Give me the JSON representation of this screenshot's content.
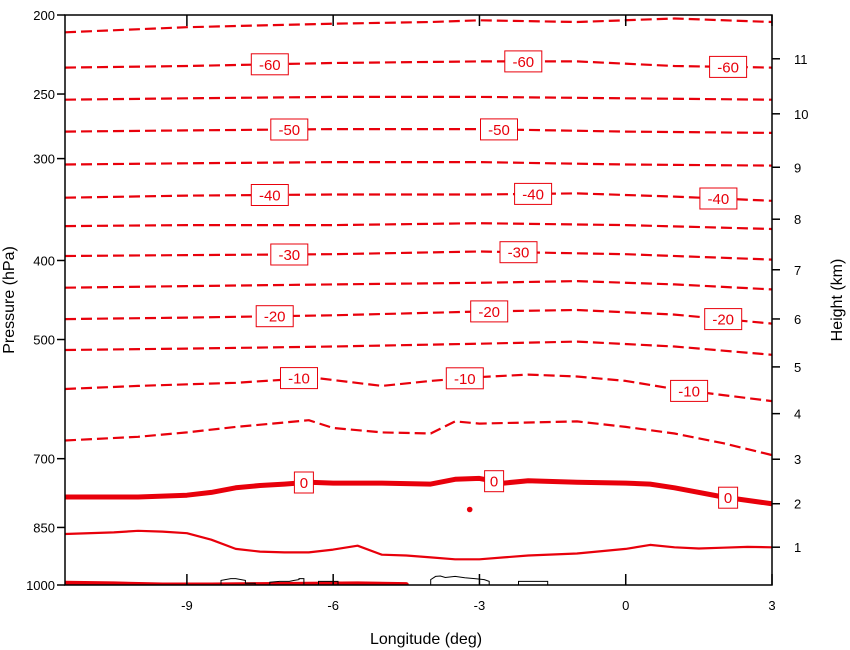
{
  "chart_data": {
    "type": "line",
    "xlabel": "Longitude (deg)",
    "ylabel": "Pressure (hPa)",
    "y2label": "Height (km)",
    "xlim": [
      -11.5,
      3
    ],
    "x_ticks": [
      -9,
      -6,
      -3,
      0,
      3
    ],
    "y_scale": "log",
    "ylim": [
      200,
      1000
    ],
    "y_ticks": [
      200,
      250,
      300,
      400,
      500,
      700,
      850,
      1000
    ],
    "y_tick_labels": [
      "200",
      "250",
      "300",
      "400",
      "500",
      "700",
      "850",
      "1000"
    ],
    "y2_ticks": [
      1,
      2,
      3,
      4,
      5,
      6,
      7,
      8,
      9,
      10,
      11
    ],
    "y2_tick_labels": [
      "1",
      "2",
      "3",
      "4",
      "5",
      "6",
      "7",
      "8",
      "9",
      "10",
      "11"
    ],
    "grid": false,
    "contour_color": "#e8000b",
    "terrain_color": "#000000",
    "contour_levels": [
      {
        "level": -65,
        "style": "dashed",
        "x": [
          -11.5,
          -9,
          -6,
          -4,
          -3,
          -1,
          1,
          3
        ],
        "y": [
          210,
          207,
          205,
          204,
          203,
          204,
          202,
          204
        ]
      },
      {
        "level": -60,
        "style": "dashed",
        "labels": [
          "-60",
          "-60",
          "-60"
        ],
        "label_x": [
          -7.3,
          -2.1,
          2.1
        ],
        "x": [
          -11.5,
          -9,
          -6,
          -3,
          -1,
          1,
          3
        ],
        "y": [
          232,
          231,
          229,
          228,
          228,
          231,
          232
        ]
      },
      {
        "level": -55,
        "style": "dashed",
        "x": [
          -11.5,
          -9,
          -6,
          -3,
          0,
          3
        ],
        "y": [
          254,
          253,
          252,
          252,
          253,
          254
        ]
      },
      {
        "level": -50,
        "style": "dashed",
        "labels": [
          "-50",
          "-50"
        ],
        "label_x": [
          -6.9,
          -2.6
        ],
        "x": [
          -11.5,
          -9,
          -6,
          -3,
          0,
          3
        ],
        "y": [
          278,
          277,
          276,
          276,
          278,
          279
        ]
      },
      {
        "level": -45,
        "style": "dashed",
        "x": [
          -11.5,
          -9,
          -6,
          -3,
          0,
          3
        ],
        "y": [
          305,
          304,
          303,
          303,
          305,
          306
        ]
      },
      {
        "level": -40,
        "style": "dashed",
        "labels": [
          "-40",
          "-40",
          "-40"
        ],
        "label_x": [
          -7.3,
          -1.9,
          1.9
        ],
        "x": [
          -11.5,
          -9,
          -6,
          -3,
          -1,
          1,
          3
        ],
        "y": [
          335,
          333,
          332,
          332,
          331,
          334,
          338
        ]
      },
      {
        "level": -35,
        "style": "dashed",
        "x": [
          -11.5,
          -9,
          -6,
          -3,
          0,
          3
        ],
        "y": [
          363,
          362,
          362,
          360,
          362,
          366
        ]
      },
      {
        "level": -30,
        "style": "dashed",
        "labels": [
          "-30",
          "-30"
        ],
        "label_x": [
          -6.9,
          -2.2
        ],
        "x": [
          -11.5,
          -9,
          -6,
          -3,
          0,
          3
        ],
        "y": [
          395,
          394,
          393,
          390,
          393,
          399
        ]
      },
      {
        "level": -25,
        "style": "dashed",
        "x": [
          -11.5,
          -9,
          -6,
          -3,
          -1,
          1,
          3
        ],
        "y": [
          432,
          430,
          428,
          426,
          424,
          428,
          434
        ]
      },
      {
        "level": -20,
        "style": "dashed",
        "labels": [
          "-20",
          "-20",
          "-20"
        ],
        "label_x": [
          -7.2,
          -2.8,
          2.0
        ],
        "x": [
          -11.5,
          -9,
          -6,
          -3,
          -1,
          1,
          3
        ],
        "y": [
          472,
          470,
          467,
          462,
          460,
          466,
          478
        ]
      },
      {
        "level": -15,
        "style": "dashed",
        "x": [
          -11.5,
          -9,
          -6,
          -3,
          -1,
          1,
          3
        ],
        "y": [
          515,
          513,
          510,
          506,
          503,
          510,
          522
        ]
      },
      {
        "level": -10,
        "style": "dashed",
        "labels": [
          "-10",
          "-10",
          "-10"
        ],
        "label_x": [
          -6.7,
          -3.3,
          1.3
        ],
        "x": [
          -11.5,
          -10,
          -8,
          -7,
          -6.5,
          -5,
          -4,
          -3,
          -2,
          -1,
          0,
          1,
          2,
          3
        ],
        "y": [
          575,
          570,
          565,
          560,
          556,
          570,
          562,
          556,
          552,
          555,
          562,
          575,
          585,
          595
        ]
      },
      {
        "level": -5,
        "style": "dashed",
        "x": [
          -11.5,
          -10,
          -9,
          -8,
          -7,
          -6.5,
          -6,
          -5,
          -4,
          -3.5,
          -3,
          -2,
          -1,
          0,
          1,
          2,
          3
        ],
        "y": [
          665,
          658,
          650,
          640,
          632,
          628,
          642,
          650,
          652,
          630,
          634,
          632,
          630,
          640,
          652,
          670,
          693
        ]
      },
      {
        "level": 0,
        "style": "thick",
        "labels": [
          "0",
          "0",
          "0"
        ],
        "label_x": [
          -6.6,
          -2.7,
          2.1
        ],
        "x": [
          -11.5,
          -10,
          -9,
          -8.5,
          -8,
          -7.5,
          -7,
          -6.5,
          -6,
          -5,
          -4,
          -3.5,
          -3,
          -2.5,
          -2,
          -1,
          0,
          0.5,
          1,
          2,
          3
        ],
        "y": [
          780,
          780,
          776,
          770,
          760,
          755,
          752,
          748,
          750,
          750,
          752,
          742,
          740,
          750,
          745,
          748,
          750,
          752,
          760,
          780,
          795
        ]
      },
      {
        "level": 5,
        "style": "solid",
        "x": [
          -11.5,
          -10.5,
          -10,
          -9.5,
          -9,
          -8.5,
          -8,
          -7.5,
          -7,
          -6.5,
          -6,
          -5.5,
          -5,
          -4.5,
          -4,
          -3.5,
          -3,
          -2.5,
          -2,
          -1,
          0,
          0.5,
          1,
          1.5,
          2,
          2.5,
          3
        ],
        "y": [
          866,
          862,
          858,
          860,
          864,
          880,
          903,
          910,
          912,
          912,
          905,
          895,
          918,
          920,
          925,
          930,
          930,
          925,
          920,
          915,
          903,
          893,
          899,
          902,
          900,
          898,
          899
        ]
      },
      {
        "level": 10,
        "style": "thick",
        "x": [
          -11.5,
          -10.5,
          -9.5,
          -8.5,
          -7.5,
          -6.5,
          -5.5,
          -4.5
        ],
        "y": [
          995,
          997,
          1000,
          1000,
          999,
          998,
          997,
          999
        ]
      }
    ],
    "isolated_mark": {
      "x": -3.2,
      "y": 808
    },
    "terrain": [
      {
        "x": [
          -8.3,
          -8.3,
          -8.1,
          -8.0,
          -7.8,
          -7.8,
          -7.6,
          -7.6
        ],
        "y": [
          1000,
          987,
          982,
          982,
          987,
          995,
          995,
          1000
        ]
      },
      {
        "x": [
          -7.3,
          -7.3,
          -7.1,
          -6.9,
          -6.8,
          -6.7,
          -6.7,
          -6.6,
          -6.6
        ],
        "y": [
          1000,
          992,
          990,
          990,
          987,
          985,
          982,
          982,
          1000
        ]
      },
      {
        "x": [
          -6.3,
          -6.3,
          -5.9,
          -5.9
        ],
        "y": [
          1000,
          990,
          990,
          1000
        ]
      },
      {
        "x": [
          -4.0,
          -4.0,
          -3.9,
          -3.8,
          -3.7,
          -3.5,
          -3.3,
          -3.1,
          -2.9,
          -2.8,
          -2.8
        ],
        "y": [
          1000,
          985,
          976,
          975,
          979,
          976,
          980,
          982,
          985,
          990,
          1000
        ]
      },
      {
        "x": [
          -2.2,
          -2.2,
          -1.6,
          -1.6
        ],
        "y": [
          1000,
          990,
          990,
          1000
        ]
      }
    ]
  }
}
